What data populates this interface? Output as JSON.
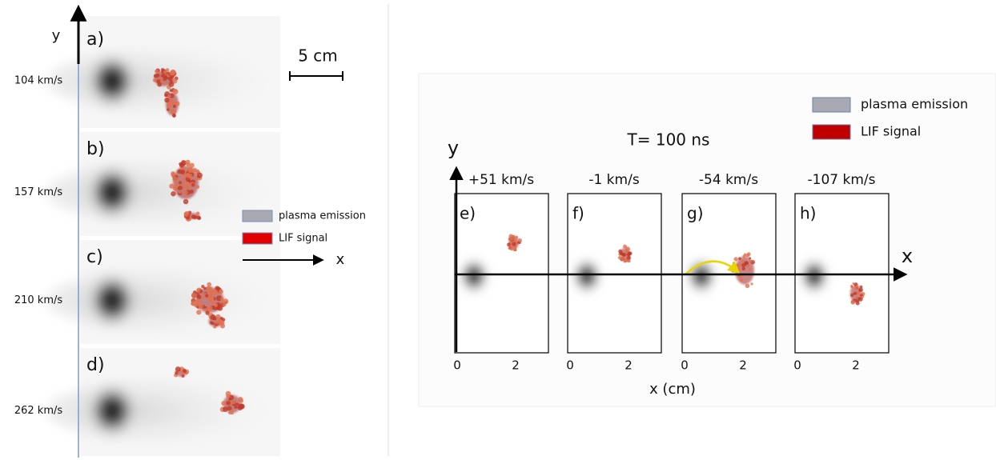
{
  "left_figure": {
    "y_axis_label": "y",
    "x_axis_label": "x",
    "scale_bar_label": "5 cm",
    "legend": [
      "plasma emission",
      "LIF signal"
    ],
    "panels": [
      {
        "letter": "a)",
        "velocity": "104 km/s"
      },
      {
        "letter": "b)",
        "velocity": "157 km/s"
      },
      {
        "letter": "c)",
        "velocity": "210 km/s"
      },
      {
        "letter": "d)",
        "velocity": "262 km/s"
      }
    ]
  },
  "right_figure": {
    "title": "T= 100 ns",
    "y_axis_label": "y",
    "x_axis_label": "x",
    "x_unit_label": "x (cm)",
    "legend": [
      "plasma emission",
      "LIF signal"
    ],
    "panels": [
      {
        "letter": "e)",
        "velocity": "+51 km/s",
        "ticks": [
          "0",
          "2"
        ]
      },
      {
        "letter": "f)",
        "velocity": "-1 km/s",
        "ticks": [
          "0",
          "2"
        ]
      },
      {
        "letter": "g)",
        "velocity": "-54 km/s",
        "ticks": [
          "0",
          "2"
        ]
      },
      {
        "letter": "h)",
        "velocity": "-107 km/s",
        "ticks": [
          "0",
          "2"
        ]
      }
    ]
  }
}
